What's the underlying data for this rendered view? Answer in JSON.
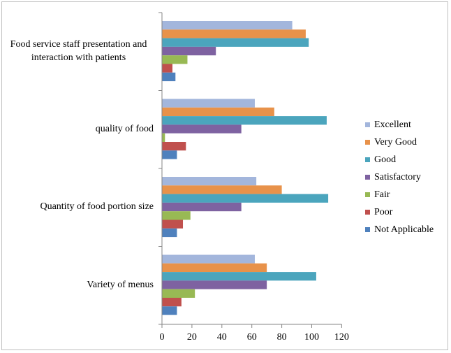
{
  "chart_data": {
    "type": "bar",
    "orientation": "horizontal",
    "categories": [
      "Food service staff presentation and interaction with patients",
      "quality of food",
      "Quantity of food portion size",
      "Variety of menus"
    ],
    "category_lines": [
      [
        "Food service staff presentation and",
        "interaction with patients"
      ],
      [
        "quality of food"
      ],
      [
        "Quantity of food portion size"
      ],
      [
        "Variety of menus"
      ]
    ],
    "series": [
      {
        "name": "Excellent",
        "color": "#a3b6dc",
        "values": [
          87,
          62,
          63,
          62
        ]
      },
      {
        "name": "Very Good",
        "color": "#e8924a",
        "values": [
          96,
          75,
          80,
          70
        ]
      },
      {
        "name": "Good",
        "color": "#4ba5bd",
        "values": [
          98,
          110,
          111,
          103
        ]
      },
      {
        "name": "Satisfactory",
        "color": "#7e62a1",
        "values": [
          36,
          53,
          53,
          70
        ]
      },
      {
        "name": "Fair",
        "color": "#98b954",
        "values": [
          17,
          2,
          19,
          22
        ]
      },
      {
        "name": "Poor",
        "color": "#c0504d",
        "values": [
          7,
          16,
          14,
          13
        ]
      },
      {
        "name": "Not Applicable",
        "color": "#4f81bd",
        "values": [
          9,
          10,
          10,
          10
        ]
      }
    ],
    "xlim": [
      0,
      120
    ],
    "xticks": [
      "0",
      "20",
      "40",
      "60",
      "80",
      "100",
      "120"
    ],
    "grid": false,
    "legend_position": "right",
    "title": "",
    "xlabel": "",
    "ylabel": ""
  }
}
